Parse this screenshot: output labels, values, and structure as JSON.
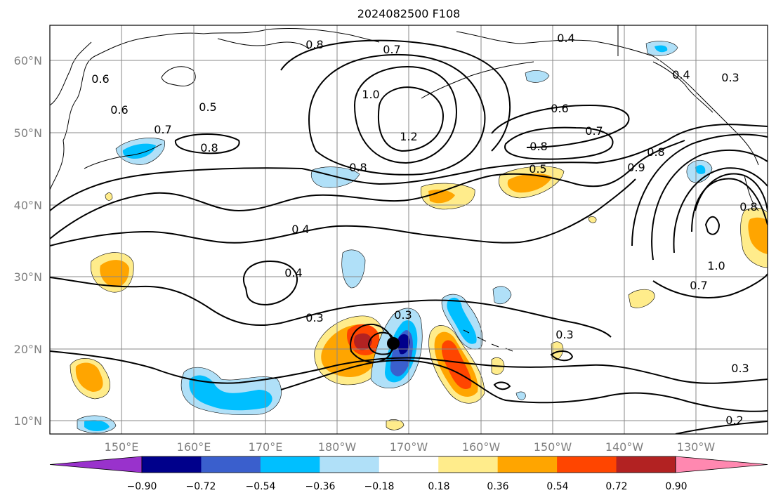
{
  "title": "2024082500 F108",
  "latitude_labels": [
    "60°N",
    "50°N",
    "40°N",
    "30°N",
    "20°N",
    "10°N"
  ],
  "longitude_labels": [
    "150°E",
    "160°E",
    "170°E",
    "180°W",
    "170°W",
    "160°W",
    "150°W",
    "140°W",
    "130°W"
  ],
  "contour_labels": [
    "0.8",
    "0.7",
    "0.4",
    "0.4",
    "0.3",
    "0.6",
    "0.6",
    "0.5",
    "0.7",
    "0.8",
    "1.0",
    "1.2",
    "0.8",
    "0.6",
    "0.7",
    "0.8",
    "0.5",
    "0.9",
    "0.8",
    "0.4",
    "0.4",
    "0.3",
    "0.3",
    "1.0",
    "0.7",
    "0.3",
    "0.3",
    "0.2",
    "0.8"
  ],
  "colorbar": {
    "tick_labels": [
      "−0.90",
      "−0.72",
      "−0.54",
      "−0.36",
      "−0.18",
      "0.18",
      "0.36",
      "0.54",
      "0.72",
      "0.90"
    ],
    "colors": [
      "#9932cc",
      "#00008b",
      "#3a5fcd",
      "#00bfff",
      "#b0e0f8",
      "#ffffff",
      "#ffec8b",
      "#ffa500",
      "#ff4500",
      "#b22222",
      "#ff88b0"
    ]
  }
}
